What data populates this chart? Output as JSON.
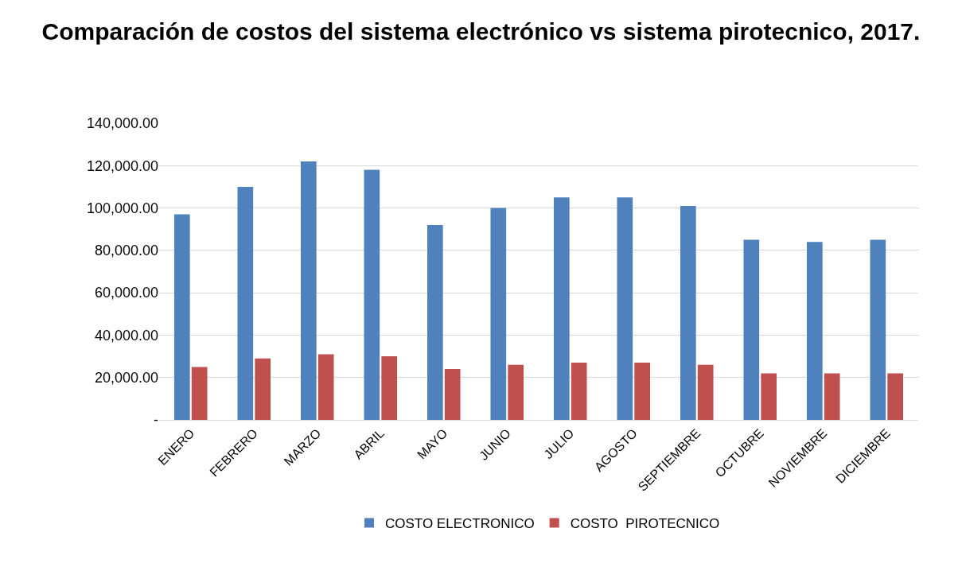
{
  "chart_data": {
    "type": "bar",
    "title": "Comparación de costos del sistema electrónico vs sistema pirotecnico, 2017.",
    "categories": [
      "ENERO",
      "FEBRERO",
      "MARZO",
      "ABRIL",
      "MAYO",
      "JUNIO",
      "JULIO",
      "AGOSTO",
      "SEPTIEMBRE",
      "OCTUBRE",
      "NOVIEMBRE",
      "DICIEMBRE"
    ],
    "series": [
      {
        "name": "COSTO ELECTRONICO",
        "color": "#4f81bd",
        "values": [
          97000,
          110000,
          122000,
          118000,
          92000,
          100000,
          105000,
          105000,
          101000,
          85000,
          84000,
          85000
        ]
      },
      {
        "name": "COSTO  PIROTECNICO",
        "color": "#c0504d",
        "values": [
          25000,
          29000,
          31000,
          30000,
          24000,
          26000,
          27000,
          27000,
          26000,
          22000,
          22000,
          22000
        ]
      }
    ],
    "ylim": [
      0,
      140000
    ],
    "yticks": [
      {
        "value": 0,
        "label": "-"
      },
      {
        "value": 20000,
        "label": "20,000.00"
      },
      {
        "value": 40000,
        "label": "40,000.00"
      },
      {
        "value": 60000,
        "label": "60,000.00"
      },
      {
        "value": 80000,
        "label": "80,000.00"
      },
      {
        "value": 100000,
        "label": "100,000.00"
      },
      {
        "value": 120000,
        "label": "120,000.00"
      },
      {
        "value": 140000,
        "label": "140,000.00"
      }
    ],
    "grid": "y",
    "legend": "bottom"
  }
}
